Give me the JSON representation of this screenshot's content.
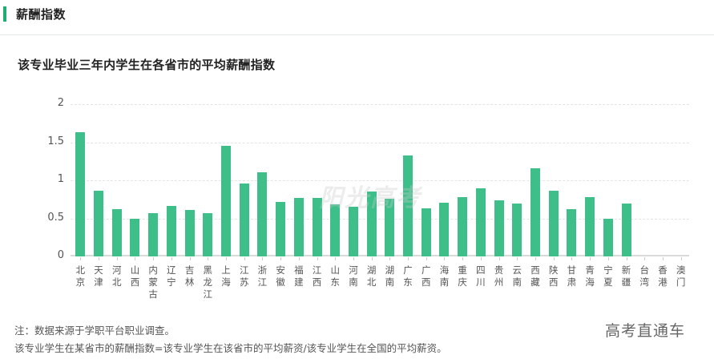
{
  "section": {
    "title": "薪酬指数",
    "accent_color": "#1dae72"
  },
  "chart_title": "该专业毕业三年内学生在各省市的平均薪酬指数",
  "watermark": "阳光高考",
  "notes": {
    "line1": "注：数据来源于学职平台职业调查。",
    "line2": "该专业学生在某省市的薪酬指数=该专业学生在该省市的平均薪资/该专业学生在全国的平均薪资。"
  },
  "brand": "高考直通车",
  "chart_data": {
    "type": "bar",
    "title": "该专业毕业三年内学生在各省市的平均薪酬指数",
    "xlabel": "",
    "ylabel": "",
    "ylim": [
      0,
      2
    ],
    "yticks": [
      "0",
      "0.5",
      "1",
      "1.5",
      "2"
    ],
    "grid": true,
    "legend": null,
    "bar_color": "#3ebf8a",
    "categories": [
      "北京",
      "天津",
      "河北",
      "山西",
      "内蒙古",
      "辽宁",
      "吉林",
      "黑龙江",
      "上海",
      "江苏",
      "浙江",
      "安徽",
      "福建",
      "江西",
      "山东",
      "河南",
      "湖北",
      "湖南",
      "广东",
      "广西",
      "海南",
      "重庆",
      "四川",
      "贵州",
      "云南",
      "西藏",
      "陕西",
      "甘肃",
      "青海",
      "宁夏",
      "新疆",
      "台湾",
      "香港",
      "澳门"
    ],
    "values": [
      1.63,
      0.86,
      0.62,
      0.49,
      0.57,
      0.66,
      0.61,
      0.57,
      1.45,
      0.96,
      1.11,
      0.72,
      0.77,
      0.77,
      0.68,
      0.65,
      0.85,
      0.76,
      1.33,
      0.63,
      0.71,
      0.78,
      0.89,
      0.74,
      0.69,
      1.16,
      0.86,
      0.62,
      0.78,
      0.5,
      0.69,
      0,
      0,
      0
    ]
  }
}
